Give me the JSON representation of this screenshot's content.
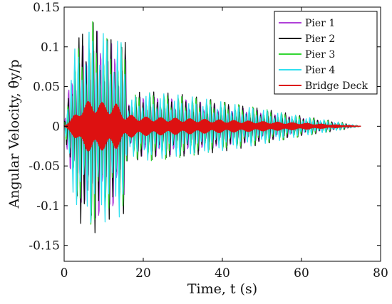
{
  "chart_data": {
    "type": "line",
    "xlabel": "Time, t (s)",
    "ylabel": "Angular Velocity, θ̇y/p",
    "xlim": [
      0,
      80
    ],
    "ylim": [
      -0.17,
      0.15
    ],
    "xticks": [
      "0",
      "20",
      "40",
      "60",
      "80"
    ],
    "yticks": [
      "0.15",
      "0.1",
      "0.05",
      "0",
      "-0.05",
      "-0.1",
      "-0.15"
    ],
    "grid": false,
    "legend_position": "top-right",
    "x_end": 75,
    "series": [
      {
        "name": "Pier 1",
        "color": "#b040d8",
        "envelope": [
          [
            0,
            0
          ],
          [
            2,
            0.09
          ],
          [
            6,
            0.13
          ],
          [
            8,
            0.14
          ],
          [
            12,
            0.12
          ],
          [
            15.5,
            0.11
          ],
          [
            16,
            0.035
          ],
          [
            20,
            0.045
          ],
          [
            30,
            0.04
          ],
          [
            40,
            0.03
          ],
          [
            50,
            0.022
          ],
          [
            60,
            0.012
          ],
          [
            70,
            0.004
          ],
          [
            75,
            0
          ]
        ],
        "period": 0.9
      },
      {
        "name": "Pier 2",
        "color": "#111111",
        "envelope": [
          [
            0,
            0
          ],
          [
            2,
            0.08
          ],
          [
            6,
            0.16
          ],
          [
            7,
            0.14
          ],
          [
            10,
            0.12
          ],
          [
            15.5,
            0.11
          ],
          [
            16,
            0.04
          ],
          [
            20,
            0.045
          ],
          [
            30,
            0.04
          ],
          [
            40,
            0.032
          ],
          [
            50,
            0.023
          ],
          [
            60,
            0.013
          ],
          [
            70,
            0.005
          ],
          [
            75,
            0
          ]
        ],
        "period": 0.9
      },
      {
        "name": "Pier 3",
        "color": "#33d633",
        "envelope": [
          [
            0,
            0
          ],
          [
            2,
            0.09
          ],
          [
            6,
            0.13
          ],
          [
            7,
            0.143
          ],
          [
            10,
            0.12
          ],
          [
            15.5,
            0.11
          ],
          [
            16,
            0.038
          ],
          [
            20,
            0.048
          ],
          [
            30,
            0.042
          ],
          [
            40,
            0.033
          ],
          [
            50,
            0.024
          ],
          [
            60,
            0.014
          ],
          [
            70,
            0.005
          ],
          [
            75,
            0
          ]
        ],
        "period": 0.9
      },
      {
        "name": "Pier 4",
        "color": "#30e0f0",
        "envelope": [
          [
            0,
            0
          ],
          [
            2,
            0.095
          ],
          [
            5,
            0.12
          ],
          [
            8,
            0.13
          ],
          [
            12,
            0.12
          ],
          [
            15.5,
            0.115
          ],
          [
            16,
            0.035
          ],
          [
            20,
            0.045
          ],
          [
            30,
            0.04
          ],
          [
            40,
            0.032
          ],
          [
            50,
            0.023
          ],
          [
            60,
            0.013
          ],
          [
            70,
            0.005
          ],
          [
            75,
            0
          ]
        ],
        "period": 0.9
      },
      {
        "name": "Bridge Deck",
        "color": "#dd1111",
        "envelope": [
          [
            0,
            0
          ],
          [
            2,
            0.01
          ],
          [
            4,
            0.025
          ],
          [
            7,
            0.035
          ],
          [
            10,
            0.03
          ],
          [
            13,
            0.03
          ],
          [
            15.5,
            0.015
          ],
          [
            20,
            0.012
          ],
          [
            40,
            0.008
          ],
          [
            60,
            0.004
          ],
          [
            75,
            0
          ]
        ],
        "period": 0.25
      }
    ]
  }
}
